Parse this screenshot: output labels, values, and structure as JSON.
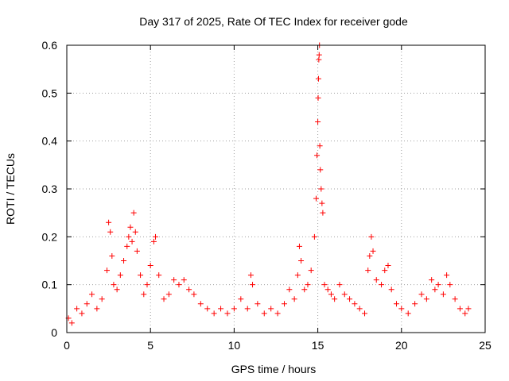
{
  "chart_data": {
    "type": "scatter",
    "title": "Day 317 of 2025, Rate Of TEC Index for receiver gode",
    "xlabel": "GPS time / hours",
    "ylabel": "ROTI / TECUs",
    "xlim": [
      0,
      25
    ],
    "ylim": [
      0,
      0.6
    ],
    "xticks": [
      "0",
      "5",
      "10",
      "15",
      "20",
      "25"
    ],
    "yticks": [
      "0",
      "0.1",
      "0.2",
      "0.3",
      "0.4",
      "0.5",
      "0.6"
    ],
    "grid": true,
    "marker": "+",
    "color": "#ff0000",
    "series": [
      {
        "name": "ROTI",
        "points": [
          [
            0.1,
            0.03
          ],
          [
            0.3,
            0.02
          ],
          [
            0.6,
            0.05
          ],
          [
            0.9,
            0.04
          ],
          [
            1.2,
            0.06
          ],
          [
            1.5,
            0.08
          ],
          [
            1.8,
            0.05
          ],
          [
            2.1,
            0.07
          ],
          [
            2.4,
            0.13
          ],
          [
            2.5,
            0.23
          ],
          [
            2.6,
            0.21
          ],
          [
            2.7,
            0.16
          ],
          [
            2.8,
            0.1
          ],
          [
            3.0,
            0.09
          ],
          [
            3.2,
            0.12
          ],
          [
            3.4,
            0.15
          ],
          [
            3.6,
            0.18
          ],
          [
            3.7,
            0.2
          ],
          [
            3.8,
            0.22
          ],
          [
            3.9,
            0.19
          ],
          [
            4.0,
            0.25
          ],
          [
            4.1,
            0.21
          ],
          [
            4.2,
            0.17
          ],
          [
            4.4,
            0.12
          ],
          [
            4.6,
            0.08
          ],
          [
            4.8,
            0.1
          ],
          [
            5.0,
            0.14
          ],
          [
            5.2,
            0.19
          ],
          [
            5.3,
            0.2
          ],
          [
            5.5,
            0.12
          ],
          [
            5.8,
            0.07
          ],
          [
            6.1,
            0.08
          ],
          [
            6.4,
            0.11
          ],
          [
            6.7,
            0.1
          ],
          [
            7.0,
            0.11
          ],
          [
            7.3,
            0.09
          ],
          [
            7.6,
            0.08
          ],
          [
            8.0,
            0.06
          ],
          [
            8.4,
            0.05
          ],
          [
            8.8,
            0.04
          ],
          [
            9.2,
            0.05
          ],
          [
            9.6,
            0.04
          ],
          [
            10.0,
            0.05
          ],
          [
            10.4,
            0.07
          ],
          [
            10.8,
            0.05
          ],
          [
            11.0,
            0.12
          ],
          [
            11.1,
            0.1
          ],
          [
            11.4,
            0.06
          ],
          [
            11.8,
            0.04
          ],
          [
            12.2,
            0.05
          ],
          [
            12.6,
            0.04
          ],
          [
            13.0,
            0.06
          ],
          [
            13.3,
            0.09
          ],
          [
            13.6,
            0.07
          ],
          [
            13.8,
            0.12
          ],
          [
            13.9,
            0.18
          ],
          [
            14.0,
            0.15
          ],
          [
            14.2,
            0.09
          ],
          [
            14.4,
            0.1
          ],
          [
            14.6,
            0.13
          ],
          [
            14.8,
            0.2
          ],
          [
            14.9,
            0.28
          ],
          [
            14.95,
            0.37
          ],
          [
            15.0,
            0.44
          ],
          [
            15.02,
            0.49
          ],
          [
            15.04,
            0.53
          ],
          [
            15.06,
            0.57
          ],
          [
            15.08,
            0.58
          ],
          [
            15.1,
            0.6
          ],
          [
            15.12,
            0.39
          ],
          [
            15.15,
            0.34
          ],
          [
            15.2,
            0.3
          ],
          [
            15.25,
            0.27
          ],
          [
            15.3,
            0.25
          ],
          [
            15.4,
            0.1
          ],
          [
            15.6,
            0.09
          ],
          [
            15.8,
            0.08
          ],
          [
            16.0,
            0.07
          ],
          [
            16.3,
            0.1
          ],
          [
            16.6,
            0.08
          ],
          [
            16.9,
            0.07
          ],
          [
            17.2,
            0.06
          ],
          [
            17.5,
            0.05
          ],
          [
            17.8,
            0.04
          ],
          [
            18.0,
            0.13
          ],
          [
            18.1,
            0.16
          ],
          [
            18.2,
            0.2
          ],
          [
            18.3,
            0.17
          ],
          [
            18.5,
            0.11
          ],
          [
            18.8,
            0.1
          ],
          [
            19.0,
            0.13
          ],
          [
            19.2,
            0.14
          ],
          [
            19.4,
            0.09
          ],
          [
            19.7,
            0.06
          ],
          [
            20.0,
            0.05
          ],
          [
            20.4,
            0.04
          ],
          [
            20.8,
            0.06
          ],
          [
            21.2,
            0.08
          ],
          [
            21.5,
            0.07
          ],
          [
            21.8,
            0.11
          ],
          [
            22.0,
            0.09
          ],
          [
            22.2,
            0.1
          ],
          [
            22.5,
            0.08
          ],
          [
            22.7,
            0.12
          ],
          [
            22.9,
            0.1
          ],
          [
            23.2,
            0.07
          ],
          [
            23.5,
            0.05
          ],
          [
            23.8,
            0.04
          ],
          [
            24.0,
            0.05
          ]
        ]
      }
    ]
  }
}
